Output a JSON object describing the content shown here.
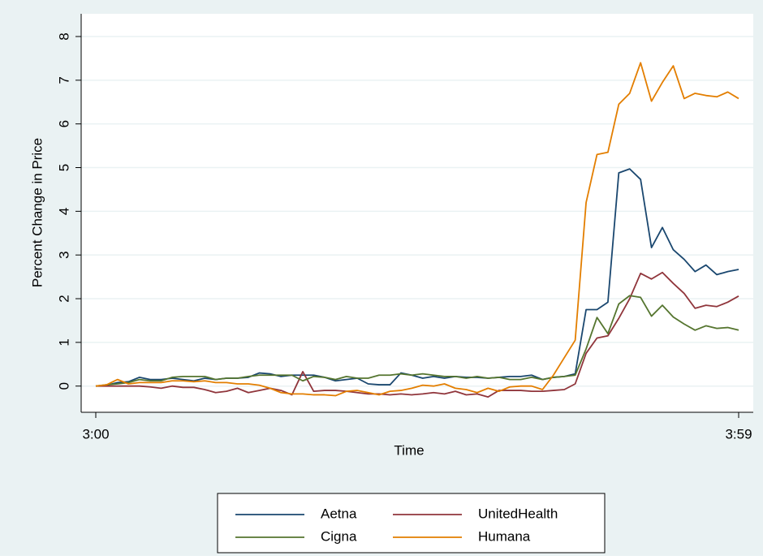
{
  "chart_data": {
    "type": "line",
    "x_label": "Time",
    "y_label": "Percent Change in Price",
    "categories": [
      "3:00",
      null,
      null,
      null,
      null,
      null,
      null,
      null,
      null,
      null,
      null,
      null,
      null,
      null,
      null,
      null,
      null,
      null,
      null,
      null,
      null,
      null,
      null,
      null,
      null,
      null,
      null,
      null,
      null,
      null,
      null,
      null,
      null,
      null,
      null,
      null,
      null,
      null,
      null,
      null,
      null,
      null,
      null,
      null,
      null,
      null,
      null,
      null,
      null,
      null,
      null,
      null,
      null,
      null,
      null,
      null,
      null,
      null,
      null,
      "3:59"
    ],
    "ylim": [
      -0.6,
      8.52
    ],
    "yticks": [
      0,
      1,
      2,
      3,
      4,
      5,
      6,
      7,
      8
    ],
    "grid": true,
    "legend": "bottom",
    "series": [
      {
        "name": "Aetna",
        "color": "#1a476f",
        "values": [
          0,
          0.02,
          0.08,
          0.1,
          0.2,
          0.15,
          0.15,
          0.18,
          0.15,
          0.12,
          0.18,
          0.15,
          0.18,
          0.18,
          0.2,
          0.3,
          0.28,
          0.22,
          0.25,
          0.25,
          0.25,
          0.2,
          0.12,
          0.15,
          0.18,
          0.05,
          0.03,
          0.03,
          0.3,
          0.25,
          0.18,
          0.22,
          0.18,
          0.22,
          0.2,
          0.2,
          0.18,
          0.2,
          0.22,
          0.22,
          0.25,
          0.15,
          0.2,
          0.22,
          0.28,
          1.75,
          1.75,
          1.92,
          4.88,
          4.97,
          4.73,
          3.17,
          3.63,
          3.12,
          2.9,
          2.62,
          2.77,
          2.55,
          2.62,
          2.67
        ]
      },
      {
        "name": "UnitedHealth",
        "color": "#90353b",
        "values": [
          0,
          0,
          0,
          0,
          0,
          -0.02,
          -0.05,
          0,
          -0.03,
          -0.03,
          -0.08,
          -0.15,
          -0.12,
          -0.05,
          -0.15,
          -0.1,
          -0.05,
          -0.1,
          -0.2,
          0.33,
          -0.12,
          -0.1,
          -0.1,
          -0.12,
          -0.15,
          -0.18,
          -0.18,
          -0.2,
          -0.18,
          -0.2,
          -0.18,
          -0.15,
          -0.18,
          -0.12,
          -0.2,
          -0.18,
          -0.25,
          -0.1,
          -0.1,
          -0.1,
          -0.12,
          -0.12,
          -0.1,
          -0.08,
          0.05,
          0.75,
          1.1,
          1.15,
          1.55,
          2.0,
          2.58,
          2.45,
          2.6,
          2.35,
          2.12,
          1.78,
          1.85,
          1.82,
          1.92,
          2.06
        ]
      },
      {
        "name": "Cigna",
        "color": "#55752f",
        "values": [
          0,
          0.03,
          0.05,
          0.08,
          0.15,
          0.12,
          0.12,
          0.2,
          0.22,
          0.22,
          0.22,
          0.15,
          0.18,
          0.18,
          0.22,
          0.25,
          0.25,
          0.25,
          0.25,
          0.12,
          0.22,
          0.2,
          0.15,
          0.22,
          0.18,
          0.18,
          0.25,
          0.25,
          0.28,
          0.25,
          0.28,
          0.25,
          0.22,
          0.22,
          0.18,
          0.22,
          0.18,
          0.2,
          0.15,
          0.15,
          0.2,
          0.15,
          0.2,
          0.22,
          0.25,
          0.85,
          1.57,
          1.2,
          1.88,
          2.07,
          2.03,
          1.6,
          1.85,
          1.58,
          1.42,
          1.28,
          1.38,
          1.32,
          1.34,
          1.28
        ]
      },
      {
        "name": "Humana",
        "color": "#e37e00",
        "values": [
          0,
          0.03,
          0.15,
          0.05,
          0.08,
          0.08,
          0.08,
          0.12,
          0.12,
          0.1,
          0.12,
          0.08,
          0.08,
          0.05,
          0.05,
          0.02,
          -0.05,
          -0.15,
          -0.18,
          -0.18,
          -0.2,
          -0.2,
          -0.22,
          -0.12,
          -0.1,
          -0.15,
          -0.2,
          -0.12,
          -0.1,
          -0.05,
          0.02,
          0,
          0.05,
          -0.05,
          -0.08,
          -0.15,
          -0.05,
          -0.12,
          -0.02,
          0,
          0,
          -0.08,
          0.25,
          0.65,
          1.05,
          4.2,
          5.3,
          5.35,
          6.45,
          6.7,
          7.4,
          6.52,
          6.95,
          7.33,
          6.58,
          6.7,
          6.65,
          6.62,
          6.73,
          6.58
        ]
      }
    ]
  }
}
